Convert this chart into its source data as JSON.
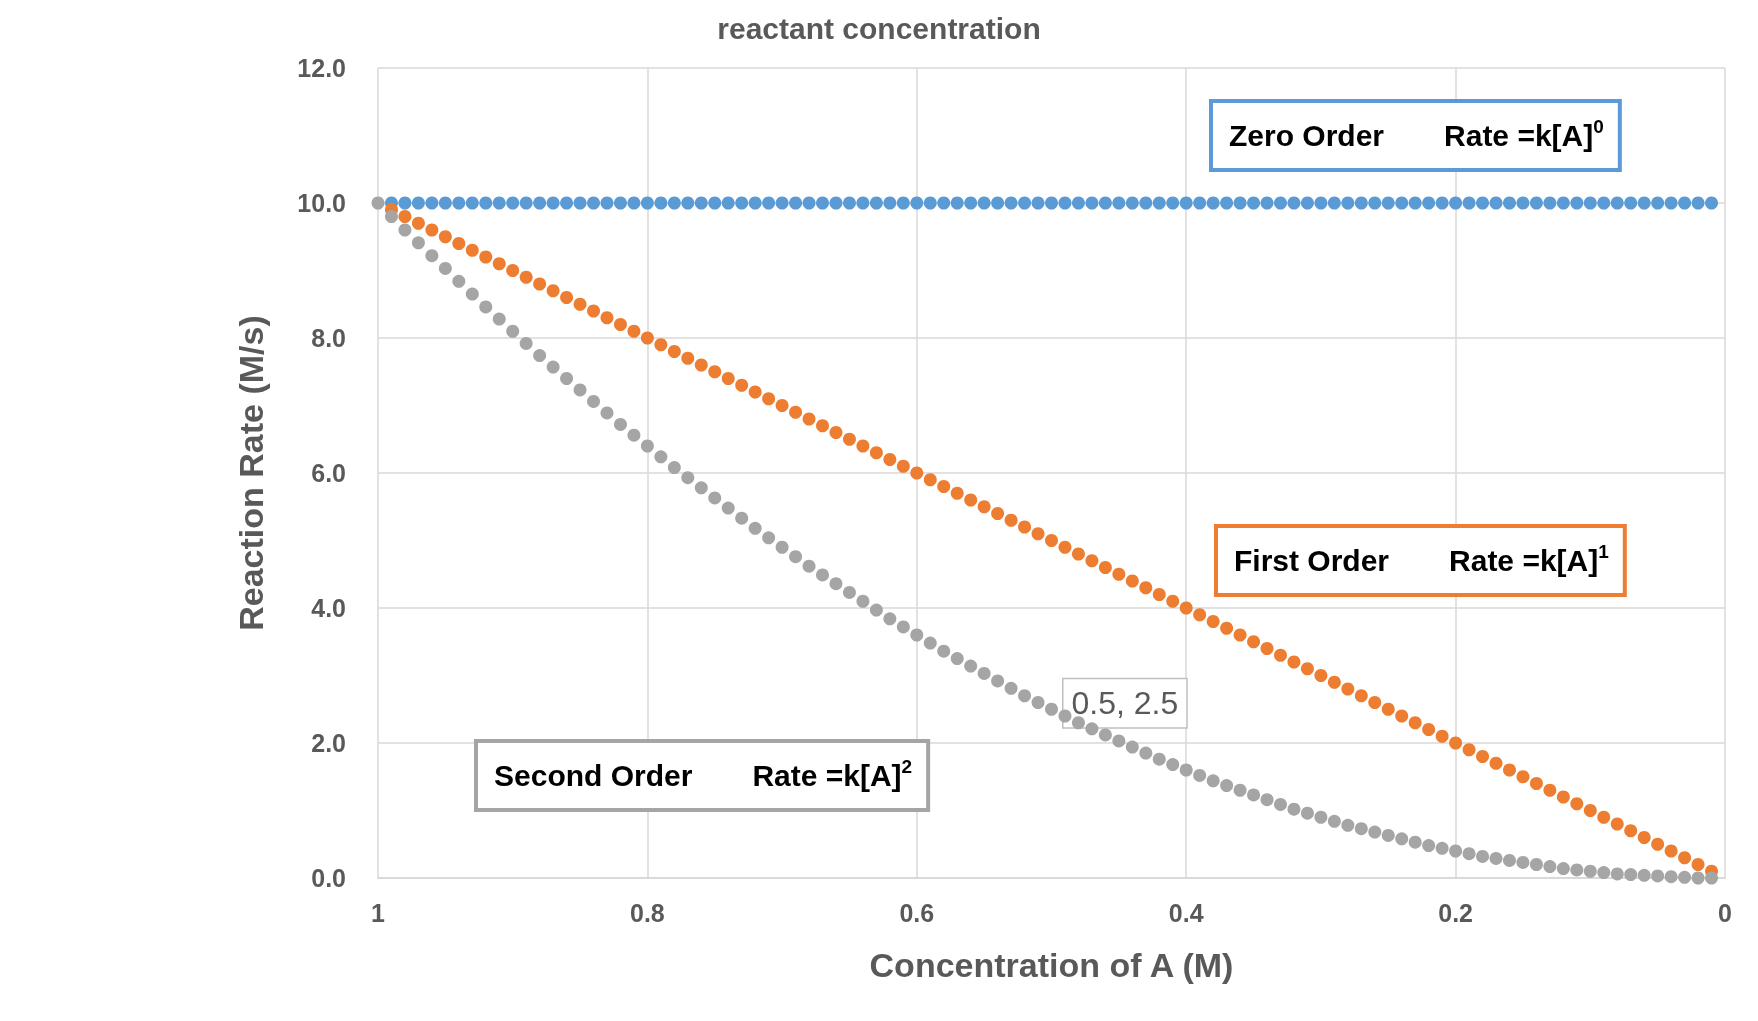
{
  "chart_data": {
    "type": "scatter",
    "title": "reactant concentration",
    "xlabel": "Concentration of A (M)",
    "ylabel": "Reaction Rate (M/s)",
    "x": [
      1,
      0.99,
      0.98,
      0.97,
      0.96,
      0.95,
      0.94,
      0.93,
      0.92,
      0.91,
      0.9,
      0.89,
      0.88,
      0.87,
      0.86,
      0.85,
      0.84,
      0.83,
      0.82,
      0.81,
      0.8,
      0.79,
      0.78,
      0.77,
      0.76,
      0.75,
      0.74,
      0.73,
      0.72,
      0.71,
      0.7,
      0.69,
      0.68,
      0.67,
      0.66,
      0.65,
      0.64,
      0.63,
      0.62,
      0.61,
      0.6,
      0.59,
      0.58,
      0.57,
      0.56,
      0.55,
      0.54,
      0.53,
      0.52,
      0.51,
      0.5,
      0.49,
      0.48,
      0.47,
      0.46,
      0.45,
      0.44,
      0.43,
      0.42,
      0.41,
      0.4,
      0.39,
      0.38,
      0.37,
      0.36,
      0.35,
      0.34,
      0.33,
      0.32,
      0.31,
      0.3,
      0.29,
      0.28,
      0.27,
      0.26,
      0.25,
      0.24,
      0.23,
      0.22,
      0.21,
      0.2,
      0.19,
      0.18,
      0.17,
      0.16,
      0.15,
      0.14,
      0.13,
      0.12,
      0.11,
      0.1,
      0.09,
      0.08,
      0.07,
      0.06,
      0.05,
      0.04,
      0.03,
      0.02,
      0.01
    ],
    "series": [
      {
        "name": "Zero Order",
        "color": "#5b9bd5",
        "values": [
          null,
          10,
          10,
          10,
          10,
          10,
          10,
          10,
          10,
          10,
          10,
          10,
          10,
          10,
          10,
          10,
          10,
          10,
          10,
          10,
          10,
          10,
          10,
          10,
          10,
          10,
          10,
          10,
          10,
          10,
          10,
          10,
          10,
          10,
          10,
          10,
          10,
          10,
          10,
          10,
          10,
          10,
          10,
          10,
          10,
          10,
          10,
          10,
          10,
          10,
          10,
          10,
          10,
          10,
          10,
          10,
          10,
          10,
          10,
          10,
          10,
          10,
          10,
          10,
          10,
          10,
          10,
          10,
          10,
          10,
          10,
          10,
          10,
          10,
          10,
          10,
          10,
          10,
          10,
          10,
          10,
          10,
          10,
          10,
          10,
          10,
          10,
          10,
          10,
          10,
          10,
          10,
          10,
          10,
          10,
          10,
          10,
          10,
          10,
          10
        ]
      },
      {
        "name": "First Order",
        "color": "#ed7d31",
        "values": [
          null,
          9.9,
          9.8,
          9.7,
          9.6,
          9.5,
          9.4,
          9.3,
          9.2,
          9.1,
          9,
          8.9,
          8.8,
          8.7,
          8.6,
          8.5,
          8.4,
          8.3,
          8.2,
          8.1,
          8,
          7.9,
          7.8,
          7.7,
          7.6,
          7.5,
          7.4,
          7.3,
          7.2,
          7.1,
          7,
          6.9,
          6.8,
          6.7,
          6.6,
          6.5,
          6.4,
          6.3,
          6.2,
          6.1,
          6,
          5.9,
          5.8,
          5.7,
          5.6,
          5.5,
          5.4,
          5.3,
          5.2,
          5.1,
          5,
          4.9,
          4.8,
          4.7,
          4.6,
          4.5,
          4.4,
          4.3,
          4.2,
          4.1,
          4,
          3.9,
          3.8,
          3.7,
          3.6,
          3.5,
          3.4,
          3.3,
          3.2,
          3.1,
          3,
          2.9,
          2.8,
          2.7,
          2.6,
          2.5,
          2.4,
          2.3,
          2.2,
          2.1,
          2,
          1.9,
          1.8,
          1.7,
          1.6,
          1.5,
          1.4,
          1.3,
          1.2,
          1.1,
          1,
          0.9,
          0.8,
          0.7,
          0.6,
          0.5,
          0.4,
          0.3,
          0.2,
          0.1
        ]
      },
      {
        "name": "Second Order",
        "color": "#a5a5a5",
        "values": [
          10,
          9.8,
          9.6,
          9.41,
          9.22,
          9.03,
          8.84,
          8.65,
          8.46,
          8.28,
          8.1,
          7.92,
          7.74,
          7.57,
          7.4,
          7.23,
          7.06,
          6.89,
          6.72,
          6.56,
          6.4,
          6.24,
          6.08,
          5.93,
          5.78,
          5.63,
          5.48,
          5.33,
          5.18,
          5.04,
          4.9,
          4.76,
          4.62,
          4.49,
          4.36,
          4.23,
          4.1,
          3.97,
          3.84,
          3.72,
          3.6,
          3.48,
          3.36,
          3.25,
          3.14,
          3.03,
          2.92,
          2.81,
          2.7,
          2.6,
          2.5,
          2.4,
          2.3,
          2.21,
          2.12,
          2.03,
          1.94,
          1.85,
          1.76,
          1.68,
          1.6,
          1.52,
          1.44,
          1.37,
          1.3,
          1.23,
          1.16,
          1.09,
          1.02,
          0.96,
          0.9,
          0.84,
          0.78,
          0.73,
          0.68,
          0.63,
          0.58,
          0.53,
          0.48,
          0.44,
          0.4,
          0.36,
          0.32,
          0.29,
          0.26,
          0.23,
          0.2,
          0.17,
          0.14,
          0.12,
          0.1,
          0.08,
          0.06,
          0.05,
          0.04,
          0.03,
          0.02,
          0.01,
          0,
          0
        ]
      }
    ],
    "annotations": [
      "Rate =k[A]$^{0}$",
      "Rate =k[A]$^{1}$",
      "Rate =k[A]$^{2}$",
      {
        "text": "0.5, 2.5",
        "x": 0.5,
        "y": 2.5
      }
    ],
    "xlim": [
      1,
      0
    ],
    "xticks": [
      1,
      0.8,
      0.6,
      0.4,
      0.2,
      0
    ],
    "ylim": [
      0,
      12
    ],
    "yticks": [
      {
        "value": 0,
        "label": "0.0"
      },
      {
        "value": 2,
        "label": "2.0"
      },
      {
        "value": 4,
        "label": "4.0"
      },
      {
        "value": 6,
        "label": "6.0"
      },
      {
        "value": 8,
        "label": "8.0"
      },
      {
        "value": 10,
        "label": "10.0"
      },
      {
        "value": 12,
        "label": "12.0"
      }
    ],
    "grid": true,
    "legend": false,
    "marker": "circle"
  }
}
